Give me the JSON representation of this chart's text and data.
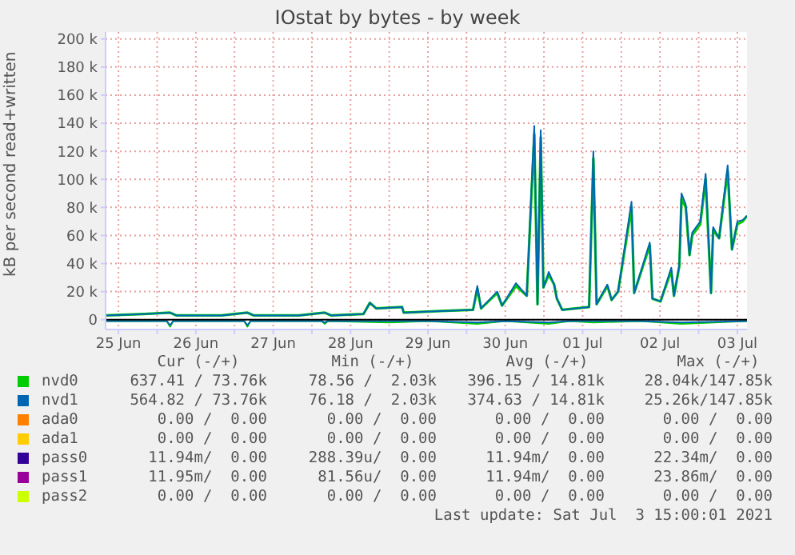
{
  "chart_data": {
    "type": "line",
    "title": "IOstat by bytes - by week",
    "ylabel": "kB per second read+written",
    "xlim": [
      "2021-06-25T08:00",
      "2021-07-03T15:00"
    ],
    "xticks": [
      {
        "value": "2021-06-25T12:00",
        "label": "25 Jun"
      },
      {
        "value": "2021-06-26T00:00",
        "label": null
      },
      {
        "value": "2021-06-26T12:00",
        "label": "26 Jun"
      },
      {
        "value": "2021-06-27T00:00",
        "label": null
      },
      {
        "value": "2021-06-27T12:00",
        "label": "27 Jun"
      },
      {
        "value": "2021-06-28T00:00",
        "label": null
      },
      {
        "value": "2021-06-28T12:00",
        "label": "28 Jun"
      },
      {
        "value": "2021-06-29T00:00",
        "label": null
      },
      {
        "value": "2021-06-29T12:00",
        "label": "29 Jun"
      },
      {
        "value": "2021-06-30T00:00",
        "label": null
      },
      {
        "value": "2021-06-30T12:00",
        "label": "30 Jun"
      },
      {
        "value": "2021-07-01T00:00",
        "label": null
      },
      {
        "value": "2021-07-01T12:00",
        "label": "01 Jul"
      },
      {
        "value": "2021-07-02T00:00",
        "label": null
      },
      {
        "value": "2021-07-02T12:00",
        "label": "02 Jul"
      },
      {
        "value": "2021-07-03T00:00",
        "label": null
      },
      {
        "value": "2021-07-03T12:00",
        "label": "03 Jul"
      }
    ],
    "ylim": [
      -7000,
      205000
    ],
    "yticks": [
      0,
      {
        "value": 20000,
        "label": "20 k"
      },
      {
        "value": 40000,
        "label": "40 k"
      },
      {
        "value": 60000,
        "label": "60 k"
      },
      {
        "value": 80000,
        "label": "80 k"
      },
      {
        "value": 100000,
        "label": "100 k"
      },
      {
        "value": 120000,
        "label": "120 k"
      },
      {
        "value": 140000,
        "label": "140 k"
      },
      {
        "value": 160000,
        "label": "160 k"
      },
      {
        "value": 180000,
        "label": "180 k"
      },
      {
        "value": 200000,
        "label": "200 k"
      }
    ],
    "grid": true,
    "legend": "bottom",
    "marker": "none",
    "line_style": "solid",
    "ref_lines": [
      {
        "axis": "y",
        "value": 0,
        "color": "#000000"
      }
    ],
    "series": [
      {
        "color": "#00cc00",
        "x": [
          "2021-06-25T08:00",
          "2021-06-26T03:00",
          "2021-06-26T04:00",
          "2021-06-26T05:00",
          "2021-06-27T03:00",
          "2021-06-27T04:00",
          "2021-06-27T05:00",
          "2021-06-28T03:00",
          "2021-06-28T04:00",
          "2021-06-28T05:00",
          "2021-06-29T00:00",
          "2021-06-29T12:00",
          "2021-06-30T03:20",
          "2021-06-30T12:00",
          "2021-07-01T01:30",
          "2021-07-01T08:00",
          "2021-07-01T15:20",
          "2021-07-02T06:00",
          "2021-07-02T18:40",
          "2021-07-03T15:00"
        ],
        "values": [
          -1000,
          -1000,
          -5000,
          -1000,
          -1000,
          -5000,
          -1000,
          -1000,
          -3000,
          -1000,
          -2000,
          -1000,
          -3000,
          -1000,
          -3000,
          -1000,
          -2000,
          -1000,
          -3000,
          -1000
        ]
      },
      {
        "color": "#0066b3",
        "x": [
          "2021-06-25T08:00",
          "2021-06-26T03:00",
          "2021-06-26T04:00",
          "2021-06-26T05:00",
          "2021-06-27T03:00",
          "2021-06-27T04:00",
          "2021-06-27T05:00",
          "2021-06-28T03:00",
          "2021-06-28T04:00",
          "2021-06-28T05:00",
          "2021-06-29T00:00",
          "2021-06-29T12:00",
          "2021-06-30T03:20",
          "2021-06-30T12:00",
          "2021-07-01T01:30",
          "2021-07-01T08:00",
          "2021-07-01T15:20",
          "2021-07-02T06:00",
          "2021-07-02T18:40",
          "2021-07-03T15:00"
        ],
        "values": [
          -1000,
          -1000,
          -4000,
          -1000,
          -1000,
          -4000,
          -1000,
          -1000,
          -2000,
          -1000,
          -1000,
          -1000,
          -2000,
          -1000,
          -2000,
          -1000,
          -1000,
          -1000,
          -2000,
          -1000
        ]
      },
      {
        "name": "nvd0",
        "color": "#00cc00",
        "x": [
          "2021-06-25T08:00",
          "2021-06-25T20:00",
          "2021-06-26T04:00",
          "2021-06-26T06:00",
          "2021-06-26T20:00",
          "2021-06-27T04:00",
          "2021-06-27T06:00",
          "2021-06-27T20:00",
          "2021-06-28T04:00",
          "2021-06-28T06:00",
          "2021-06-28T16:00",
          "2021-06-28T18:00",
          "2021-06-28T20:00",
          "2021-06-29T04:00",
          "2021-06-29T04:30",
          "2021-06-29T14:30",
          "2021-06-30T02:00",
          "2021-06-30T03:20",
          "2021-06-30T04:30",
          "2021-06-30T09:30",
          "2021-06-30T11:00",
          "2021-06-30T15:20",
          "2021-06-30T18:40",
          "2021-06-30T21:00",
          "2021-06-30T22:00",
          "2021-06-30T23:00",
          "2021-06-30T23:50",
          "2021-07-01T01:30",
          "2021-07-01T03:10",
          "2021-07-01T04:00",
          "2021-07-01T05:40",
          "2021-07-01T14:00",
          "2021-07-01T15:20",
          "2021-07-01T16:20",
          "2021-07-01T19:40",
          "2021-07-01T21:00",
          "2021-07-01T23:00",
          "2021-07-02T03:10",
          "2021-07-02T04:00",
          "2021-07-02T08:50",
          "2021-07-02T09:40",
          "2021-07-02T12:10",
          "2021-07-02T15:30",
          "2021-07-02T16:20",
          "2021-07-02T18:00",
          "2021-07-02T18:40",
          "2021-07-02T20:00",
          "2021-07-02T21:10",
          "2021-07-02T22:00",
          "2021-07-03T00:30",
          "2021-07-03T02:10",
          "2021-07-03T03:50",
          "2021-07-03T04:30",
          "2021-07-03T06:20",
          "2021-07-03T09:00",
          "2021-07-03T10:20",
          "2021-07-03T12:00",
          "2021-07-03T13:40",
          "2021-07-03T15:00"
        ],
        "values": [
          3000,
          4000,
          5000,
          3000,
          3000,
          5000,
          3000,
          3000,
          5000,
          3000,
          4000,
          12000,
          8000,
          9000,
          5000,
          6000,
          7000,
          22000,
          8000,
          19000,
          10000,
          24000,
          17000,
          132000,
          11000,
          130000,
          23000,
          32000,
          25000,
          15000,
          7000,
          9000,
          115000,
          11000,
          24000,
          14000,
          20000,
          80000,
          19000,
          53000,
          15000,
          13000,
          35000,
          17000,
          38000,
          86000,
          80000,
          46000,
          60000,
          68000,
          100000,
          19000,
          64000,
          58000,
          106000,
          50000,
          68000,
          70000,
          74000
        ]
      },
      {
        "name": "nvd1",
        "color": "#0066b3",
        "x": [
          "2021-06-25T08:00",
          "2021-06-25T20:00",
          "2021-06-26T04:00",
          "2021-06-26T06:00",
          "2021-06-26T20:00",
          "2021-06-27T04:00",
          "2021-06-27T06:00",
          "2021-06-27T20:00",
          "2021-06-28T04:00",
          "2021-06-28T06:00",
          "2021-06-28T16:00",
          "2021-06-28T18:00",
          "2021-06-28T20:00",
          "2021-06-29T04:00",
          "2021-06-29T04:30",
          "2021-06-29T14:30",
          "2021-06-30T02:00",
          "2021-06-30T03:20",
          "2021-06-30T04:30",
          "2021-06-30T09:30",
          "2021-06-30T11:00",
          "2021-06-30T15:20",
          "2021-06-30T18:40",
          "2021-06-30T21:00",
          "2021-06-30T22:00",
          "2021-06-30T23:00",
          "2021-06-30T23:50",
          "2021-07-01T01:30",
          "2021-07-01T03:10",
          "2021-07-01T04:00",
          "2021-07-01T05:40",
          "2021-07-01T14:00",
          "2021-07-01T15:20",
          "2021-07-01T16:20",
          "2021-07-01T19:40",
          "2021-07-01T21:00",
          "2021-07-01T23:00",
          "2021-07-02T03:10",
          "2021-07-02T04:00",
          "2021-07-02T08:50",
          "2021-07-02T09:40",
          "2021-07-02T12:10",
          "2021-07-02T15:30",
          "2021-07-02T16:20",
          "2021-07-02T18:00",
          "2021-07-02T18:40",
          "2021-07-02T20:00",
          "2021-07-02T21:10",
          "2021-07-02T22:00",
          "2021-07-03T00:30",
          "2021-07-03T02:10",
          "2021-07-03T03:50",
          "2021-07-03T04:30",
          "2021-07-03T06:20",
          "2021-07-03T09:00",
          "2021-07-03T10:20",
          "2021-07-03T12:00",
          "2021-07-03T13:40",
          "2021-07-03T15:00"
        ],
        "values": [
          3000,
          4000,
          5000,
          3000,
          3000,
          5000,
          3000,
          3000,
          5000,
          3000,
          4000,
          12000,
          8000,
          9000,
          5000,
          6000,
          7000,
          24000,
          8000,
          20000,
          10000,
          26000,
          17000,
          138000,
          11000,
          135000,
          23000,
          34000,
          25000,
          15000,
          7000,
          9000,
          120000,
          11000,
          25000,
          14000,
          20000,
          84000,
          19000,
          55000,
          15000,
          13000,
          37000,
          17000,
          39000,
          90000,
          82000,
          46000,
          62000,
          70000,
          104000,
          19000,
          66000,
          58000,
          110000,
          50000,
          70000,
          71000,
          74000
        ]
      },
      {
        "name": "ada0",
        "color": "#ff8000"
      },
      {
        "name": "ada1",
        "color": "#ffcc00"
      },
      {
        "name": "pass0",
        "color": "#330099"
      },
      {
        "name": "pass1",
        "color": "#990099"
      },
      {
        "name": "pass2",
        "color": "#ccff00"
      }
    ],
    "annotations": [
      "Cur (-/+)",
      "Min (-/+)",
      "Avg (-/+)",
      "Max (-/+)",
      "637.41 / 73.76k",
      "78.56 /  2.03k",
      "396.15 / 14.81k",
      "28.04k/147.85k",
      "564.82 / 73.76k",
      "76.18 /  2.03k",
      "374.63 / 14.81k",
      "25.26k/147.85k",
      "0.00 /  0.00",
      "0.00 /  0.00",
      "0.00 /  0.00",
      "0.00 /  0.00",
      "0.00 /  0.00",
      "0.00 /  0.00",
      "0.00 /  0.00",
      "0.00 /  0.00",
      "11.94m/  0.00",
      "288.39u/  0.00",
      "11.94m/  0.00",
      "22.34m/  0.00",
      "11.95m/  0.00",
      "81.56u/  0.00",
      "11.94m/  0.00",
      "23.86m/  0.00",
      "0.00 /  0.00",
      "0.00 /  0.00",
      "0.00 /  0.00",
      "0.00 /  0.00",
      "Last update: Sat Jul  3 15:00:01 2021"
    ]
  }
}
